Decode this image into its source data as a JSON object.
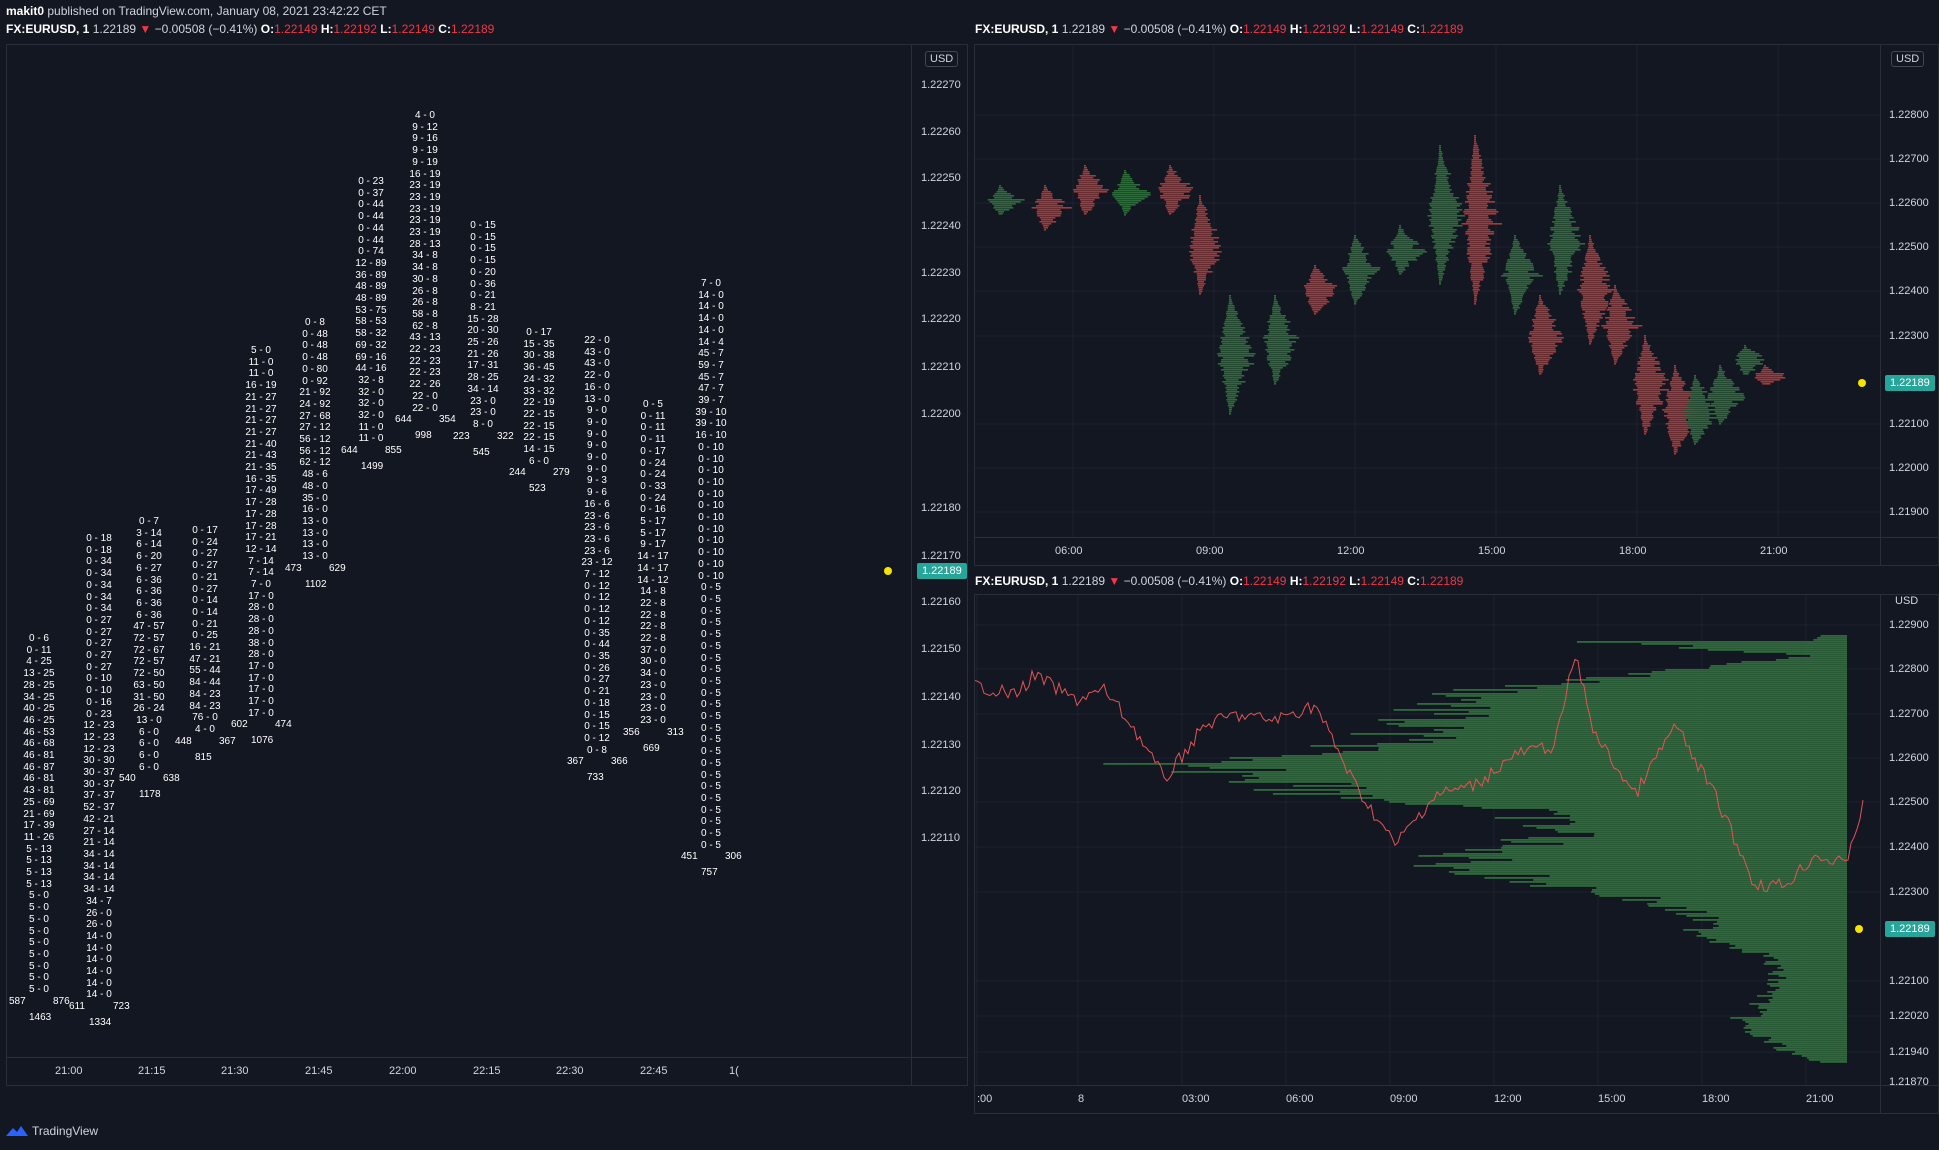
{
  "header": {
    "user": "makit0",
    "published": "published on TradingView.com, January 08, 2021 23:42:22 CET"
  },
  "symbol": {
    "name": "FX:EURUSD, 1",
    "price": "1.22189",
    "change": "−0.00508 (−0.41%)",
    "o_label": "O:",
    "o": "1.22149",
    "h_label": "H:",
    "h": "1.22192",
    "l_label": "L:",
    "l": "1.22149",
    "c_label": "C:",
    "c": "1.22189",
    "arrow": "▼"
  },
  "currency": "USD",
  "current_price": "1.22189",
  "colors": {
    "bg": "#131722",
    "green": "#26a69a",
    "red": "#ef5350",
    "profile_green": "#2e6b3a",
    "profile_red": "#a23b3b",
    "tag": "#26a69a"
  },
  "left_pane": {
    "price_ticks": [
      "1.22270",
      "1.22260",
      "1.22250",
      "1.22240",
      "1.22230",
      "1.22220",
      "1.22210",
      "1.22200",
      "1.22180",
      "1.22170",
      "1.22160",
      "1.22150",
      "1.22140",
      "1.22130",
      "1.22120",
      "1.22110"
    ],
    "time_ticks": [
      "21:00",
      "21:15",
      "21:30",
      "21:45",
      "22:00",
      "22:15",
      "22:30",
      "22:45",
      "1("
    ],
    "columns": [
      {
        "text": "0 - 6\n0 - 11\n4 - 25\n13 - 25\n28 - 25\n34 - 25\n40 - 25\n46 - 25\n46 - 53\n46 - 68\n46 - 81\n46 - 87\n46 - 81\n43 - 81\n25 - 69\n21 - 69\n17 - 39\n11 - 26\n5 - 13\n5 - 13\n5 - 13\n5 - 13\n5 - 0\n5 - 0\n5 - 0\n5 - 0\n5 - 0\n5 - 0\n5 - 0\n5 - 0\n5 - 0",
        "left_vol": "587",
        "right_vol": "876",
        "total": "1463"
      },
      {
        "text": "0 - 18\n0 - 18\n0 - 34\n0 - 34\n0 - 34\n0 - 34\n0 - 34\n0 - 27\n0 - 27\n0 - 27\n0 - 27\n0 - 27\n0 - 10\n0 - 10\n0 - 16\n0 - 23\n12 - 23\n12 - 23\n12 - 23\n30 - 30\n30 - 37\n30 - 37\n37 - 37\n52 - 37\n42 - 21\n27 - 14\n21 - 14\n34 - 14\n34 - 14\n34 - 14\n34 - 14\n34 - 7\n26 - 0\n26 - 0\n14 - 0\n14 - 0\n14 - 0\n14 - 0\n14 - 0\n14 - 0",
        "left_vol": "611",
        "right_vol": "723",
        "total": "1334"
      },
      {
        "text": "0 - 7\n3 - 14\n6 - 14\n6 - 20\n6 - 27\n6 - 36\n6 - 36\n6 - 36\n6 - 36\n47 - 57\n72 - 57\n72 - 67\n72 - 57\n72 - 50\n63 - 50\n31 - 50\n26 - 24\n13 - 0\n6 - 0\n6 - 0\n6 - 0\n6 - 0",
        "left_vol": "540",
        "right_vol": "638",
        "total": "1178"
      },
      {
        "text": "0 - 17\n0 - 24\n0 - 27\n0 - 27\n0 - 21\n0 - 27\n0 - 14\n0 - 14\n0 - 21\n0 - 25\n16 - 21\n47 - 21\n55 - 44\n84 - 44\n84 - 23\n84 - 23\n76 - 0\n4 - 0",
        "left_vol": "448",
        "right_vol": "367",
        "total": "815"
      },
      {
        "text": "5 - 0\n11 - 0\n11 - 0\n16 - 19\n21 - 27\n21 - 27\n21 - 27\n21 - 27\n21 - 40\n21 - 43\n21 - 35\n16 - 35\n17 - 49\n17 - 28\n17 - 28\n17 - 28\n17 - 21\n12 - 14\n7 - 14\n7 - 14\n7 - 0\n17 - 0\n28 - 0\n28 - 0\n28 - 0\n38 - 0\n28 - 0\n17 - 0\n17 - 0\n17 - 0\n17 - 0\n17 - 0",
        "left_vol": "602",
        "right_vol": "474",
        "total": "1076"
      },
      {
        "text": "0 - 8\n0 - 48\n0 - 48\n0 - 48\n0 - 80\n0 - 92\n21 - 92\n24 - 92\n27 - 68\n27 - 12\n56 - 12\n56 - 12\n62 - 12\n48 - 6\n48 - 0\n35 - 0\n16 - 0\n13 - 0\n13 - 0\n13 - 0\n13 - 0",
        "left_vol": "473",
        "right_vol": "629",
        "total": "1102"
      },
      {
        "text": "0 - 23\n0 - 37\n0 - 44\n0 - 44\n0 - 44\n0 - 44\n0 - 74\n12 - 89\n36 - 89\n48 - 89\n48 - 89\n53 - 75\n58 - 53\n58 - 32\n69 - 32\n69 - 16\n44 - 16\n32 - 8\n32 - 0\n32 - 0\n32 - 0\n11 - 0\n11 - 0",
        "left_vol": "644",
        "right_vol": "855",
        "total": "1499"
      },
      {
        "text": "4 - 0\n9 - 12\n9 - 16\n9 - 19\n9 - 19\n16 - 19\n23 - 19\n23 - 19\n23 - 19\n23 - 19\n23 - 19\n28 - 13\n34 - 8\n34 - 8\n30 - 8\n26 - 8\n26 - 8\n58 - 8\n62 - 8\n43 - 13\n22 - 23\n22 - 23\n22 - 23\n22 - 26\n22 - 0\n22 - 0",
        "left_vol": "644",
        "right_vol": "354",
        "total": "998"
      },
      {
        "text": "0 - 15\n0 - 15\n0 - 15\n0 - 15\n0 - 20\n0 - 36\n0 - 21\n8 - 21\n15 - 28\n20 - 30\n25 - 26\n21 - 26\n17 - 31\n28 - 25\n34 - 14\n23 - 0\n23 - 0\n8 - 0",
        "left_vol": "223",
        "right_vol": "322",
        "total": "545"
      },
      {
        "text": "0 - 17\n15 - 35\n30 - 38\n36 - 45\n24 - 32\n33 - 32\n22 - 19\n22 - 15\n22 - 15\n22 - 15\n14 - 15\n6 - 0",
        "left_vol": "244",
        "right_vol": "279",
        "total": "523"
      },
      {
        "text": "22 - 0\n43 - 0\n43 - 0\n22 - 0\n16 - 0\n13 - 0\n9 - 0\n9 - 0\n9 - 0\n9 - 0\n9 - 0\n9 - 0\n9 - 3\n9 - 6\n16 - 6\n23 - 6\n23 - 6\n23 - 6\n23 - 6\n23 - 12\n7 - 12\n0 - 12\n0 - 12\n0 - 12\n0 - 12\n0 - 35\n0 - 44\n0 - 35\n0 - 26\n0 - 27\n0 - 21\n0 - 18\n0 - 15\n0 - 15\n0 - 12\n0 - 8",
        "left_vol": "367",
        "right_vol": "366",
        "total": "733"
      },
      {
        "text": "0 - 5\n0 - 11\n0 - 11\n0 - 11\n0 - 17\n0 - 24\n0 - 24\n0 - 33\n0 - 24\n0 - 16\n5 - 17\n5 - 17\n9 - 17\n14 - 17\n14 - 17\n14 - 12\n14 - 8\n22 - 8\n22 - 8\n22 - 8\n22 - 8\n37 - 0\n30 - 0\n34 - 0\n23 - 0\n23 - 0\n23 - 0\n23 - 0",
        "left_vol": "356",
        "right_vol": "313",
        "total": "669"
      },
      {
        "text": "7 - 0\n14 - 0\n14 - 0\n14 - 0\n14 - 0\n14 - 4\n45 - 7\n59 - 7\n45 - 7\n47 - 7\n39 - 7\n39 - 10\n39 - 10\n16 - 10\n0 - 10\n0 - 10\n0 - 10\n0 - 10\n0 - 10\n0 - 10\n0 - 10\n0 - 10\n0 - 10\n0 - 10\n0 - 10\n0 - 10\n0 - 5\n0 - 5\n0 - 5\n0 - 5\n0 - 5\n0 - 5\n0 - 5\n0 - 5\n0 - 5\n0 - 5\n0 - 5\n0 - 5\n0 - 5\n0 - 5\n0 - 5\n0 - 5\n0 - 5\n0 - 5\n0 - 5\n0 - 5\n0 - 5\n0 - 5\n0 - 5",
        "left_vol": "451",
        "right_vol": "306",
        "total": "757"
      }
    ]
  },
  "top_right_pane": {
    "price_ticks": [
      "1.22800",
      "1.22700",
      "1.22600",
      "1.22500",
      "1.22400",
      "1.22300",
      "1.22100",
      "1.22000",
      "1.21900"
    ],
    "time_ticks": [
      "06:00",
      "09:00",
      "12:00",
      "15:00",
      "18:00",
      "21:00"
    ]
  },
  "bottom_right_pane": {
    "price_ticks": [
      "1.22900",
      "1.22800",
      "1.22700",
      "1.22600",
      "1.22500",
      "1.22400",
      "1.22300",
      "1.22100",
      "1.22020",
      "1.21940",
      "1.21870"
    ],
    "time_ticks": [
      ":00",
      "8",
      "03:00",
      "06:00",
      "09:00",
      "12:00",
      "15:00",
      "18:00",
      "21:00"
    ]
  },
  "footer": {
    "brand": "TradingView"
  }
}
